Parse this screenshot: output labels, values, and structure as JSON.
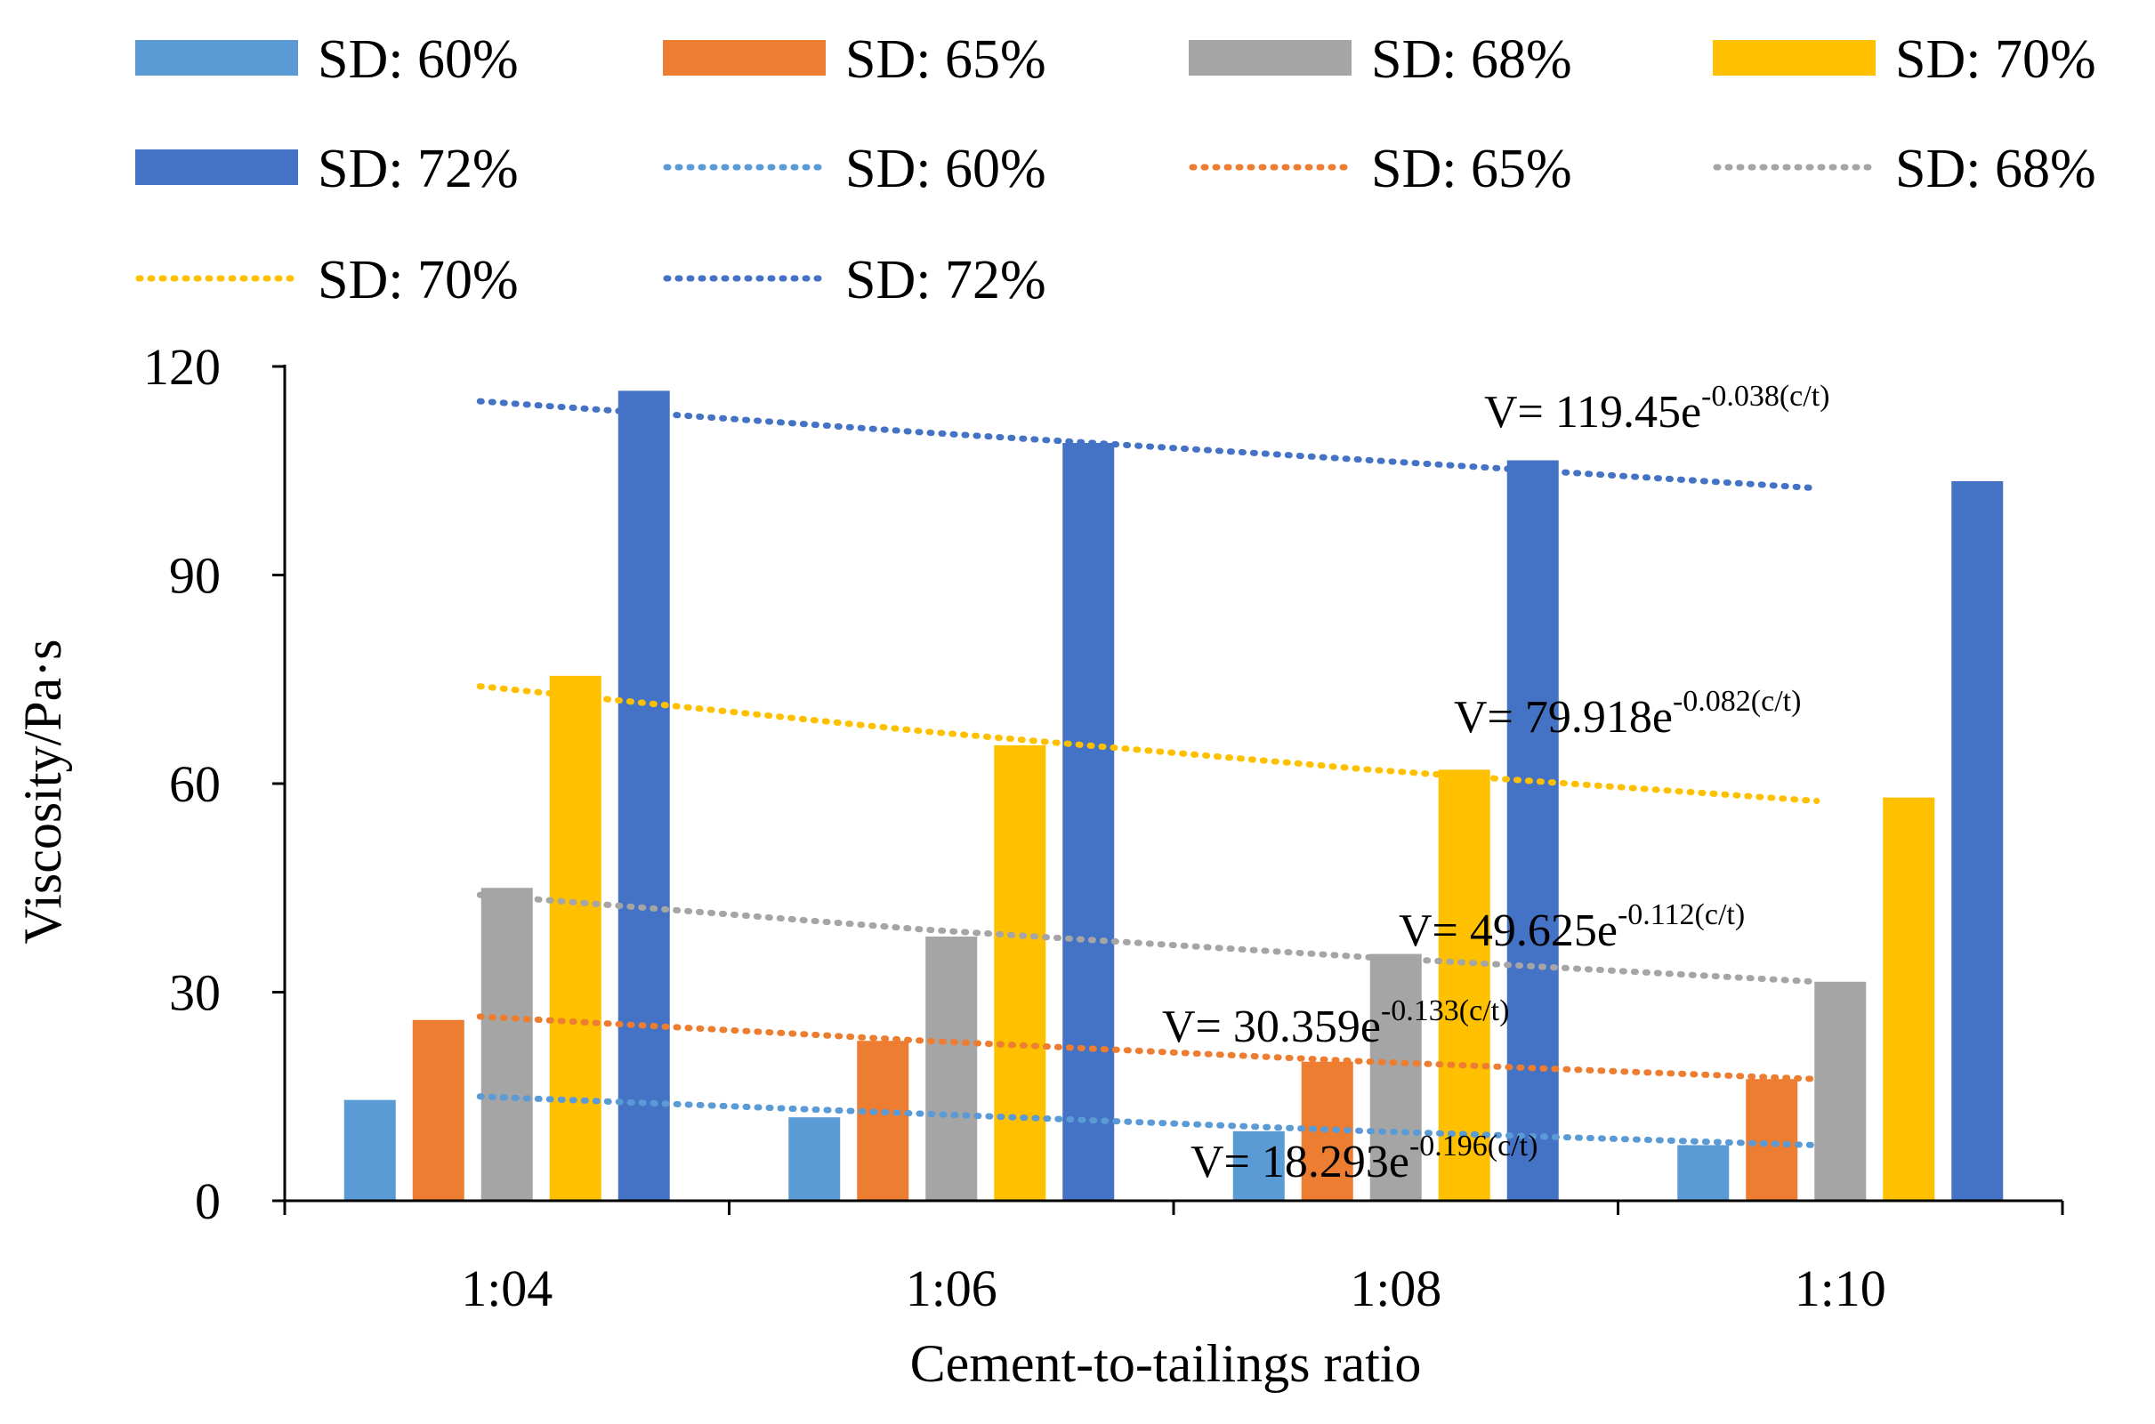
{
  "chart_data": {
    "type": "bar",
    "title": "",
    "xlabel": "Cement-to-tailings ratio",
    "ylabel": "Viscosity/Pa·s",
    "categories": [
      "1:04",
      "1:06",
      "1:08",
      "1:10"
    ],
    "ylim": [
      0,
      120
    ],
    "yticks": [
      0,
      30,
      60,
      90,
      120
    ],
    "grid": false,
    "legend_position": "top",
    "series": [
      {
        "name": "SD: 60%",
        "color": "#5B9BD5",
        "values": [
          14.5,
          12.0,
          10.0,
          8.0
        ]
      },
      {
        "name": "SD: 65%",
        "color": "#ED7D31",
        "values": [
          26.0,
          23.0,
          20.0,
          17.5
        ]
      },
      {
        "name": "SD: 68%",
        "color": "#A5A5A5",
        "values": [
          45.0,
          38.0,
          35.5,
          31.5
        ]
      },
      {
        "name": "SD: 70%",
        "color": "#FFC000",
        "values": [
          75.5,
          65.5,
          62.0,
          58.0
        ]
      },
      {
        "name": "SD: 72%",
        "color": "#4472C4",
        "values": [
          116.5,
          109.0,
          106.5,
          103.5
        ]
      }
    ],
    "trendlines": [
      {
        "name": "SD: 60%",
        "color": "#5B9BD5",
        "values": [
          15.0,
          12.5,
          10.0,
          8.0
        ],
        "equation": "V= 18.293e",
        "exponent": "-0.196(c/t)"
      },
      {
        "name": "SD: 65%",
        "color": "#ED7D31",
        "values": [
          26.5,
          23.0,
          20.0,
          17.5
        ],
        "equation": "V= 30.359e",
        "exponent": "-0.133(c/t)"
      },
      {
        "name": "SD: 68%",
        "color": "#A5A5A5",
        "values": [
          44.0,
          39.0,
          35.0,
          31.5
        ],
        "equation": "V= 49.625e",
        "exponent": "-0.112(c/t)"
      },
      {
        "name": "SD: 70%",
        "color": "#FFC000",
        "values": [
          74.0,
          67.5,
          62.0,
          57.5
        ],
        "equation": "V= 79.918e",
        "exponent": "-0.082(c/t)"
      },
      {
        "name": "SD: 72%",
        "color": "#4472C4",
        "values": [
          115.0,
          110.5,
          106.5,
          102.5
        ],
        "equation": "V= 119.45e",
        "exponent": "-0.038(c/t)"
      }
    ]
  }
}
